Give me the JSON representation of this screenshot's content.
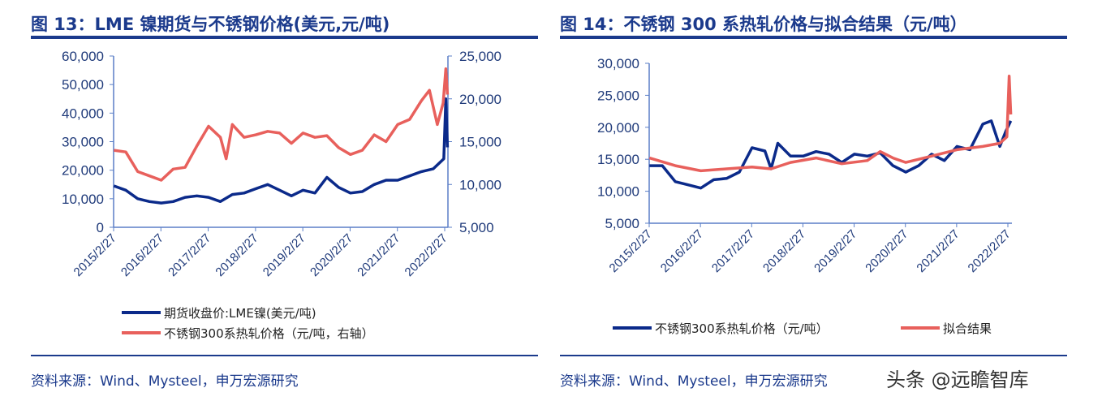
{
  "charts": [
    {
      "title": "图 13：LME 镍期货与不锈钢价格(美元,元/吨)",
      "source": "资料来源：Wind、Mysteel，申万宏源研究"
    },
    {
      "title": "图 14：不锈钢 300 系热轧价格与拟合结果（元/吨）",
      "source": "资料来源：Wind、Mysteel，申万宏源研究"
    }
  ],
  "watermark": "头条 @远瞻智库",
  "chart_data": [
    {
      "type": "line",
      "title": "图 13：LME 镍期货与不锈钢价格(美元,元/吨)",
      "x_ticks": [
        "2015/2/27",
        "2016/2/27",
        "2017/2/27",
        "2018/2/27",
        "2019/2/27",
        "2020/2/27",
        "2021/2/27",
        "2022/2/27"
      ],
      "ylim": [
        0,
        60000
      ],
      "y_ticks": [
        "0",
        "10,000",
        "20,000",
        "30,000",
        "40,000",
        "50,000",
        "60,000"
      ],
      "y2lim": [
        5000,
        25000
      ],
      "y2_ticks": [
        "5,000",
        "10,000",
        "15,000",
        "20,000",
        "25,000"
      ],
      "grid": false,
      "legend": "bottom",
      "series": [
        {
          "name": "期货收盘价:LME镍(美元/吨)",
          "color": "#0b2a8a",
          "axis": "left",
          "x": [
            "2015-03-01",
            "2015-06-01",
            "2015-09-01",
            "2015-12-01",
            "2016-03-01",
            "2016-06-01",
            "2016-09-01",
            "2016-12-01",
            "2017-03-01",
            "2017-06-01",
            "2017-09-01",
            "2017-12-01",
            "2018-03-01",
            "2018-06-01",
            "2018-09-01",
            "2018-12-01",
            "2019-03-01",
            "2019-06-01",
            "2019-09-01",
            "2019-12-01",
            "2020-03-01",
            "2020-06-01",
            "2020-09-01",
            "2020-12-01",
            "2021-03-01",
            "2021-06-01",
            "2021-09-01",
            "2021-12-01",
            "2022-02-20",
            "2022-03-08",
            "2022-03-20"
          ],
          "y": [
            14500,
            13000,
            10000,
            9000,
            8500,
            9000,
            10500,
            11000,
            10500,
            9000,
            11500,
            12000,
            13500,
            15000,
            13000,
            11000,
            13000,
            12000,
            17500,
            14000,
            12000,
            12500,
            15000,
            16500,
            16500,
            18000,
            19500,
            20500,
            24000,
            45000,
            28000
          ]
        },
        {
          "name": "不锈钢300系热轧价格（元/吨，右轴）",
          "color": "#e8605c",
          "axis": "right",
          "x": [
            "2015-03-01",
            "2015-06-01",
            "2015-09-01",
            "2015-12-01",
            "2016-03-01",
            "2016-06-01",
            "2016-09-01",
            "2016-12-01",
            "2017-03-01",
            "2017-06-01",
            "2017-07-15",
            "2017-09-01",
            "2017-12-01",
            "2018-03-01",
            "2018-06-01",
            "2018-09-01",
            "2018-12-01",
            "2019-03-01",
            "2019-06-01",
            "2019-09-01",
            "2019-12-01",
            "2020-03-01",
            "2020-06-01",
            "2020-09-01",
            "2020-12-01",
            "2021-03-01",
            "2021-06-01",
            "2021-09-01",
            "2021-11-01",
            "2022-01-01",
            "2022-02-15",
            "2022-03-08",
            "2022-03-20"
          ],
          "y": [
            14000,
            13800,
            11500,
            11000,
            10500,
            11800,
            12000,
            14500,
            16800,
            15500,
            13000,
            17000,
            15500,
            15800,
            16200,
            16000,
            14800,
            16000,
            15500,
            15700,
            14300,
            13500,
            14000,
            15800,
            15000,
            17000,
            17600,
            19800,
            21000,
            17000,
            19500,
            23500,
            20500
          ]
        }
      ]
    },
    {
      "type": "line",
      "title": "图 14：不锈钢 300 系热轧价格与拟合结果（元/吨）",
      "x_ticks": [
        "2015/2/27",
        "2016/2/27",
        "2017/2/27",
        "2018/2/27",
        "2019/2/27",
        "2020/2/27",
        "2021/2/27",
        "2022/2/27"
      ],
      "ylim": [
        5000,
        30000
      ],
      "y_ticks": [
        "5,000",
        "10,000",
        "15,000",
        "20,000",
        "25,000",
        "30,000"
      ],
      "grid": false,
      "legend": "bottom",
      "series": [
        {
          "name": "不锈钢300系热轧价格（元/吨）",
          "color": "#0b2a8a",
          "x": [
            "2015-03-01",
            "2015-06-01",
            "2015-09-01",
            "2015-12-01",
            "2016-03-01",
            "2016-06-01",
            "2016-09-01",
            "2016-12-01",
            "2017-03-01",
            "2017-06-01",
            "2017-07-15",
            "2017-09-01",
            "2017-12-01",
            "2018-03-01",
            "2018-06-01",
            "2018-09-01",
            "2018-12-01",
            "2019-03-01",
            "2019-06-01",
            "2019-09-01",
            "2019-12-01",
            "2020-03-01",
            "2020-06-01",
            "2020-09-01",
            "2020-12-01",
            "2021-03-01",
            "2021-06-01",
            "2021-09-01",
            "2021-11-01",
            "2022-01-01",
            "2022-02-15",
            "2022-03-20"
          ],
          "y": [
            14000,
            14000,
            11500,
            11000,
            10500,
            11800,
            12000,
            13000,
            16800,
            16300,
            13500,
            17500,
            15500,
            15500,
            16200,
            15800,
            14500,
            15800,
            15500,
            16000,
            14000,
            13000,
            14000,
            15800,
            14800,
            17000,
            16500,
            20500,
            21000,
            17000,
            19500,
            21000
          ]
        },
        {
          "name": "拟合结果",
          "color": "#e8605c",
          "x": [
            "2015-03-01",
            "2015-09-01",
            "2016-03-01",
            "2016-09-01",
            "2017-03-01",
            "2017-07-15",
            "2017-12-01",
            "2018-06-01",
            "2018-12-01",
            "2019-06-01",
            "2019-09-01",
            "2019-12-01",
            "2020-03-01",
            "2020-09-01",
            "2021-03-01",
            "2021-09-01",
            "2022-01-01",
            "2022-02-20",
            "2022-03-08",
            "2022-03-20"
          ],
          "y": [
            15200,
            14000,
            13200,
            13500,
            13800,
            13500,
            14500,
            15200,
            14300,
            14800,
            16200,
            15200,
            14500,
            15500,
            16500,
            17000,
            17500,
            18500,
            28000,
            22000
          ]
        }
      ]
    }
  ]
}
